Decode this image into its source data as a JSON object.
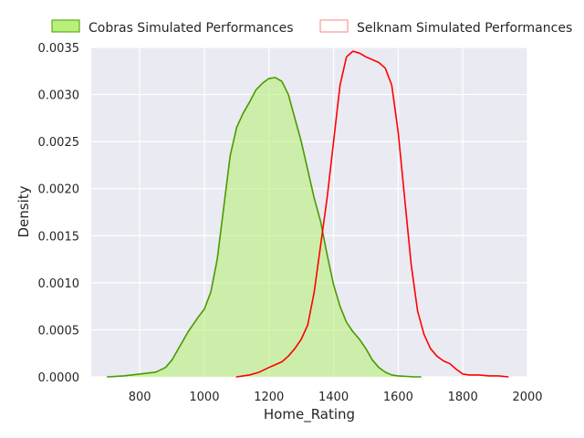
{
  "chart_data": {
    "type": "area",
    "xlabel": "Home_Rating",
    "ylabel": "Density",
    "xlim": [
      650,
      2000
    ],
    "ylim": [
      0,
      0.0035
    ],
    "xticks": [
      800,
      1000,
      1200,
      1400,
      1600,
      1800,
      2000
    ],
    "yticks": [
      0.0,
      0.0005,
      0.001,
      0.0015,
      0.002,
      0.0025,
      0.003,
      0.0035
    ],
    "xtick_labels": [
      "800",
      "1000",
      "1200",
      "1400",
      "1600",
      "1800",
      "2000"
    ],
    "ytick_labels": [
      "0.0000",
      "0.0005",
      "0.0010",
      "0.0015",
      "0.0020",
      "0.0025",
      "0.0030",
      "0.0035"
    ],
    "grid": true,
    "legend_position": "top",
    "series": [
      {
        "name": "Cobras Simulated Performances",
        "color": "#4c9a00",
        "fill": "#b8f07a",
        "filled": true,
        "x": [
          700,
          750,
          800,
          850,
          880,
          900,
          920,
          950,
          980,
          1000,
          1020,
          1040,
          1060,
          1080,
          1100,
          1120,
          1140,
          1160,
          1180,
          1200,
          1220,
          1240,
          1260,
          1280,
          1300,
          1320,
          1340,
          1360,
          1380,
          1400,
          1420,
          1440,
          1460,
          1480,
          1500,
          1520,
          1540,
          1560,
          1580,
          1600,
          1650,
          1670
        ],
        "y": [
          0.0,
          1e-05,
          3e-05,
          5e-05,
          0.0001,
          0.00018,
          0.0003,
          0.00048,
          0.00063,
          0.00072,
          0.0009,
          0.00125,
          0.0018,
          0.00235,
          0.00265,
          0.0028,
          0.00292,
          0.00305,
          0.00312,
          0.00317,
          0.00318,
          0.00314,
          0.003,
          0.00275,
          0.0025,
          0.0022,
          0.0019,
          0.00165,
          0.0013,
          0.00098,
          0.00075,
          0.00058,
          0.00048,
          0.0004,
          0.0003,
          0.00018,
          0.0001,
          5e-05,
          2e-05,
          1e-05,
          0.0,
          0.0
        ]
      },
      {
        "name": "Selknam Simulated Performances",
        "color": "#ff0000",
        "fill": "#ff8080",
        "filled": false,
        "x": [
          1100,
          1140,
          1170,
          1200,
          1220,
          1240,
          1260,
          1280,
          1300,
          1320,
          1340,
          1360,
          1380,
          1400,
          1420,
          1440,
          1460,
          1480,
          1500,
          1520,
          1540,
          1560,
          1580,
          1600,
          1620,
          1640,
          1660,
          1680,
          1700,
          1720,
          1740,
          1760,
          1780,
          1800,
          1820,
          1850,
          1880,
          1910,
          1940
        ],
        "y": [
          0.0,
          2e-05,
          5e-05,
          0.0001,
          0.00013,
          0.00016,
          0.00022,
          0.0003,
          0.0004,
          0.00055,
          0.0009,
          0.0014,
          0.0019,
          0.0025,
          0.0031,
          0.0034,
          0.00346,
          0.00344,
          0.0034,
          0.00337,
          0.00334,
          0.00328,
          0.0031,
          0.0026,
          0.0019,
          0.0012,
          0.0007,
          0.00045,
          0.0003,
          0.00022,
          0.00017,
          0.00014,
          8e-05,
          3e-05,
          2e-05,
          2e-05,
          1e-05,
          1e-05,
          0.0
        ]
      }
    ]
  }
}
